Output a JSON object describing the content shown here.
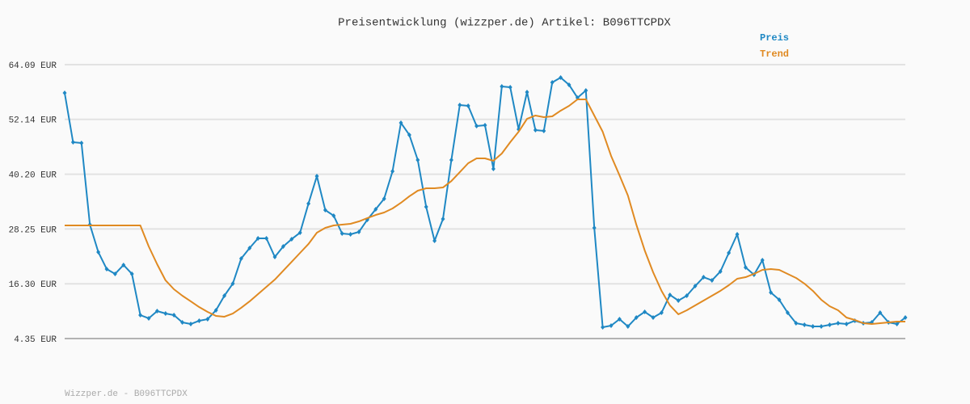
{
  "chart_data": {
    "type": "line",
    "title": "Preisentwicklung (wizzper.de) Artikel: B096TTCPDX",
    "footer": "Wizzper.de - B096TTCPDX",
    "ylim": [
      4.35,
      64.09
    ],
    "yticks": [
      {
        "value": 4.35,
        "label": "4.35 EUR"
      },
      {
        "value": 16.3,
        "label": "16.30 EUR"
      },
      {
        "value": 28.25,
        "label": "28.25 EUR"
      },
      {
        "value": 40.2,
        "label": "40.20 EUR"
      },
      {
        "value": 52.14,
        "label": "52.14 EUR"
      },
      {
        "value": 64.09,
        "label": "64.09 EUR"
      }
    ],
    "grid": true,
    "series": [
      {
        "name": "Preis",
        "color": "#1f88c4",
        "markers": true,
        "values": [
          57.92,
          47.17,
          47.0,
          29.2,
          23.21,
          19.51,
          18.45,
          20.39,
          18.45,
          9.46,
          8.76,
          10.34,
          9.81,
          9.46,
          7.87,
          7.52,
          8.23,
          8.58,
          10.52,
          13.69,
          16.33,
          21.8,
          24.09,
          26.2,
          26.2,
          22.15,
          24.44,
          26.03,
          27.44,
          33.78,
          39.77,
          32.37,
          31.14,
          27.26,
          27.08,
          27.61,
          30.26,
          32.55,
          34.84,
          40.83,
          51.4,
          48.76,
          43.3,
          33.08,
          25.67,
          30.43,
          43.3,
          55.28,
          55.1,
          50.7,
          50.87,
          41.36,
          59.33,
          59.16,
          49.99,
          58.1,
          49.82,
          49.64,
          60.21,
          61.27,
          59.69,
          56.87,
          58.45,
          28.49,
          6.82,
          7.17,
          8.58,
          6.99,
          8.93,
          10.17,
          8.93,
          9.99,
          13.87,
          12.63,
          13.69,
          15.8,
          17.74,
          17.04,
          18.98,
          23.03,
          27.08,
          19.86,
          18.27,
          21.44,
          14.4,
          12.81,
          9.99,
          7.7,
          7.35,
          6.99,
          6.99,
          7.35,
          7.7,
          7.52,
          8.23,
          7.7,
          7.87,
          9.99,
          7.87,
          7.52,
          8.93
        ]
      },
      {
        "name": "Trend",
        "color": "#e08a22",
        "markers": false,
        "values": [
          29.02,
          29.02,
          29.02,
          29.02,
          29.02,
          29.02,
          29.02,
          29.02,
          29.02,
          29.02,
          24.44,
          20.56,
          17.04,
          15.1,
          13.69,
          12.46,
          11.22,
          10.17,
          9.28,
          9.11,
          9.81,
          11.05,
          12.46,
          14.04,
          15.63,
          17.21,
          19.15,
          21.09,
          23.03,
          24.97,
          27.44,
          28.49,
          29.02,
          29.2,
          29.37,
          29.9,
          30.61,
          31.31,
          31.84,
          32.72,
          33.96,
          35.37,
          36.6,
          37.13,
          37.13,
          37.3,
          38.71,
          40.65,
          42.59,
          43.65,
          43.65,
          43.12,
          44.71,
          47.17,
          49.46,
          52.28,
          52.99,
          52.64,
          52.81,
          54.05,
          55.1,
          56.51,
          56.51,
          52.99,
          49.46,
          44.18,
          39.95,
          35.54,
          29.2,
          23.56,
          18.8,
          14.75,
          11.58,
          9.64,
          10.52,
          11.58,
          12.63,
          13.69,
          14.75,
          15.98,
          17.39,
          17.74,
          18.45,
          19.33,
          19.51,
          19.33,
          18.45,
          17.57,
          16.33,
          14.75,
          12.81,
          11.4,
          10.52,
          8.93,
          8.4,
          7.7,
          7.52,
          7.7,
          7.87,
          8.05,
          8.05
        ]
      }
    ]
  }
}
